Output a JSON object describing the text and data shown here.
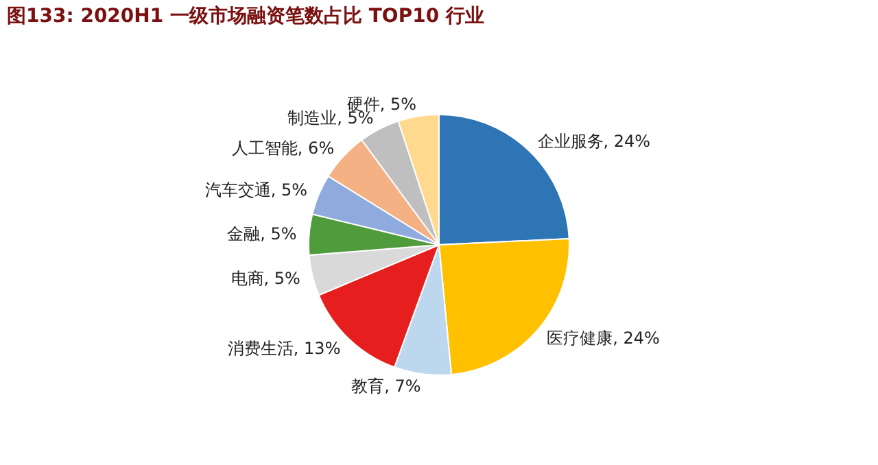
{
  "chart_data": {
    "type": "pie",
    "title": "图133:   2020H1 一级市场融资笔数占比 TOP10 行业",
    "categories": [
      "企业服务",
      "医疗健康",
      "教育",
      "消费生活",
      "电商",
      "金融",
      "汽车交通",
      "人工智能",
      "制造业",
      "硬件"
    ],
    "values": [
      24,
      24,
      7,
      13,
      5,
      5,
      5,
      6,
      5,
      5
    ],
    "value_labels": [
      "24%",
      "24%",
      "7%",
      "13%",
      "5%",
      "5%",
      "5%",
      "6%",
      "5%",
      "5%"
    ],
    "colors": [
      "#2e75b6",
      "#ffc000",
      "#bdd7ee",
      "#e61e1e",
      "#d9d9d9",
      "#509b3c",
      "#8faadc",
      "#f4b183",
      "#bfbfbf",
      "#ffd98e"
    ],
    "legend": false
  }
}
